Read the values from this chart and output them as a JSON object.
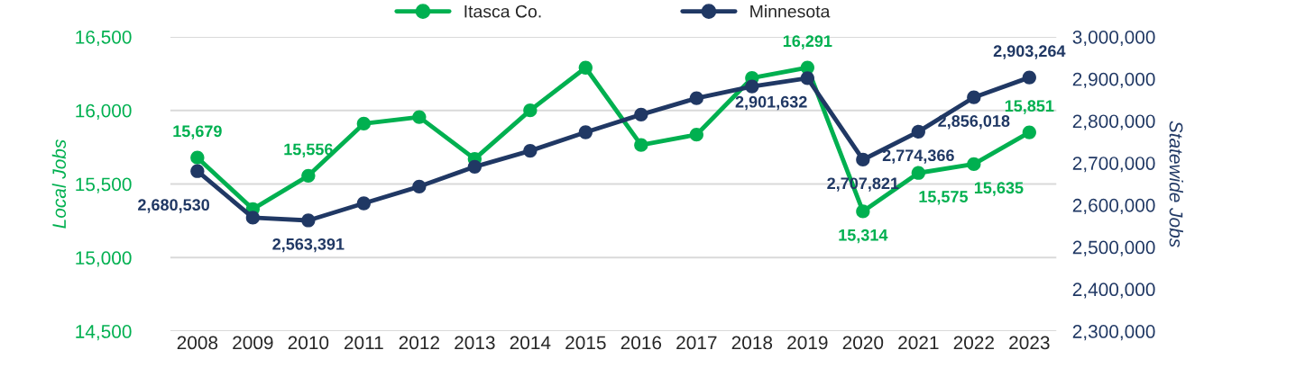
{
  "chart_data": {
    "type": "line",
    "ylabel": "Local Jobs",
    "y2label": "Statewide Jobs",
    "categories": [
      "2008",
      "2009",
      "2010",
      "2011",
      "2012",
      "2013",
      "2014",
      "2015",
      "2016",
      "2017",
      "2018",
      "2019",
      "2020",
      "2021",
      "2022",
      "2023"
    ],
    "series": [
      {
        "name": "Itasca Co.",
        "color": "#00b050",
        "axis": "y",
        "values": [
          15679,
          15330,
          15556,
          15910,
          15955,
          15670,
          16000,
          16290,
          15765,
          15835,
          16220,
          16291,
          15314,
          15575,
          15635,
          15851
        ],
        "value_labels": [
          "15,679",
          null,
          "15,556",
          null,
          null,
          null,
          null,
          null,
          null,
          null,
          null,
          "16,291",
          "15,314",
          "15,575",
          "15,635",
          "15,851"
        ]
      },
      {
        "name": "Minnesota",
        "color": "#203864",
        "axis": "y2",
        "values": [
          2680530,
          2570000,
          2563391,
          2604000,
          2644000,
          2691000,
          2729000,
          2773000,
          2815000,
          2854000,
          2882000,
          2901632,
          2707821,
          2774366,
          2856018,
          2903264
        ],
        "value_labels": [
          "2,680,530",
          null,
          "2,563,391",
          null,
          null,
          null,
          null,
          null,
          null,
          null,
          null,
          "2,901,632",
          "2,707,821",
          "2,774,366",
          "2,856,018",
          "2,903,264"
        ]
      }
    ],
    "ylim": [
      14500,
      16500
    ],
    "yticks": [
      {
        "value": 14500,
        "label": "14,500"
      },
      {
        "value": 15000,
        "label": "15,000"
      },
      {
        "value": 15500,
        "label": "15,500"
      },
      {
        "value": 16000,
        "label": "16,000"
      },
      {
        "value": 16500,
        "label": "16,500"
      }
    ],
    "y2lim": [
      2300000,
      3000000
    ],
    "y2ticks": [
      {
        "value": 2300000,
        "label": "2,300,000"
      },
      {
        "value": 2400000,
        "label": "2,400,000"
      },
      {
        "value": 2500000,
        "label": "2,500,000"
      },
      {
        "value": 2600000,
        "label": "2,600,000"
      },
      {
        "value": 2700000,
        "label": "2,700,000"
      },
      {
        "value": 2800000,
        "label": "2,800,000"
      },
      {
        "value": 2900000,
        "label": "2,900,000"
      },
      {
        "value": 3000000,
        "label": "3,000,000"
      }
    ],
    "grid": "y",
    "legend": "top",
    "marker": "circle",
    "line_style": "solid"
  }
}
